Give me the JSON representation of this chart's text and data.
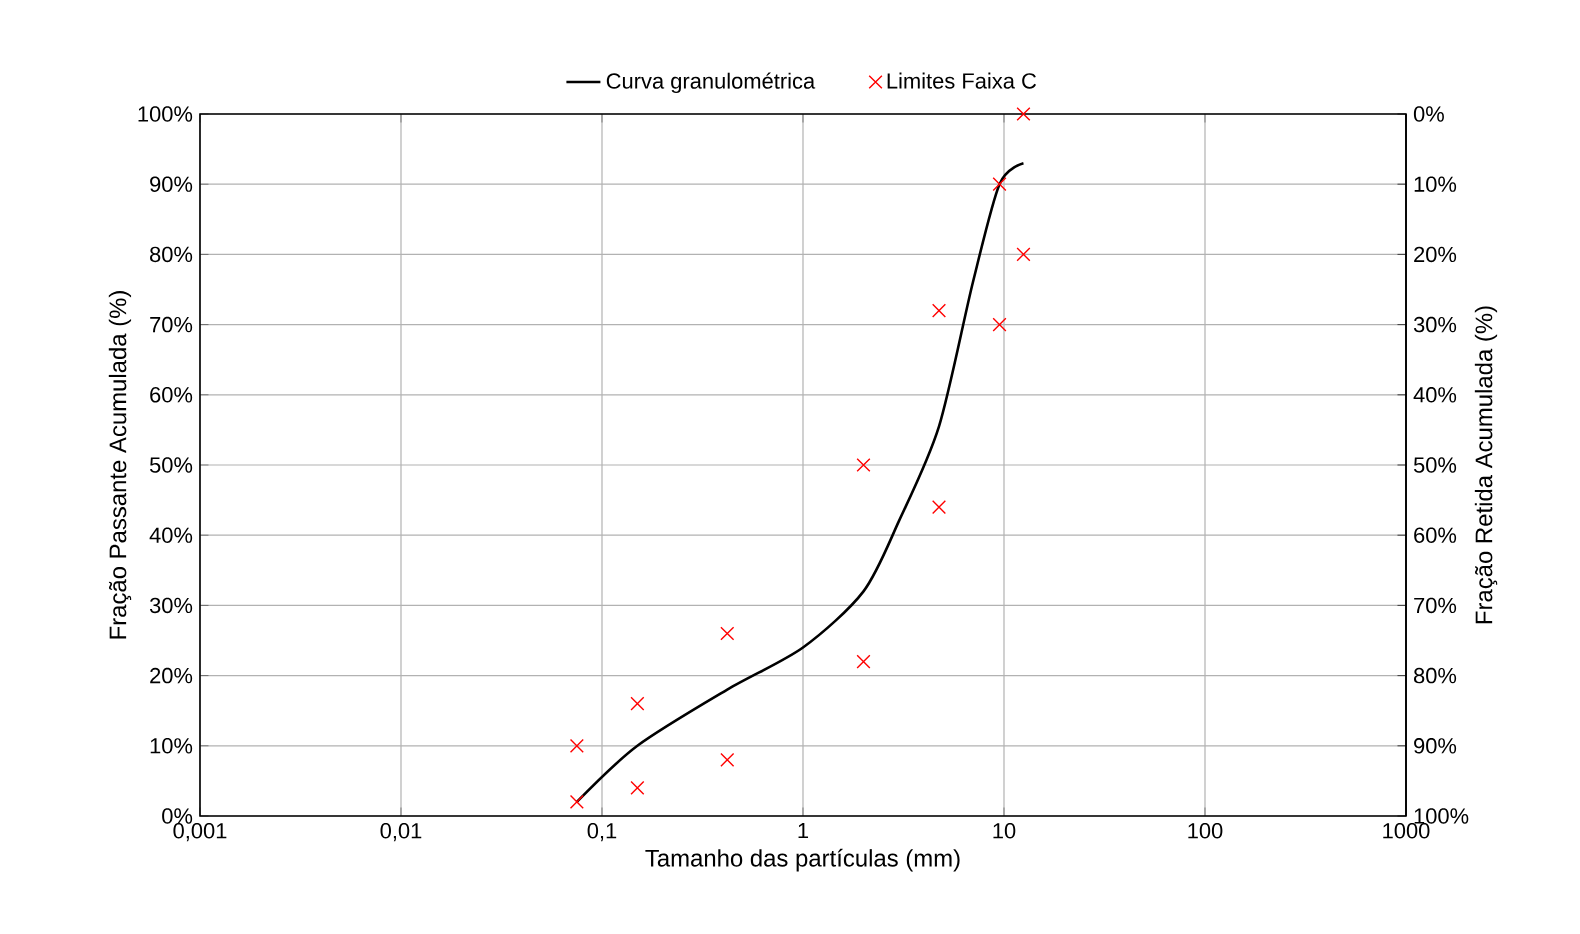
{
  "chart_data": {
    "type": "line",
    "xlabel": "Tamanho das partículas (mm)",
    "ylabel": "Fração Passante Acumulada (%)",
    "y2label": "Fração Retida Acumulada (%)",
    "log": "x",
    "grid": true,
    "legend": "top",
    "xlim": [
      0.001,
      1000
    ],
    "xticks": [
      {
        "value": 0.001,
        "label": "0,001"
      },
      {
        "value": 0.01,
        "label": "0,01"
      },
      {
        "value": 0.1,
        "label": "0,1"
      },
      1,
      10,
      100,
      1000
    ],
    "ylim": [
      0,
      100
    ],
    "yticks": [
      {
        "value": 0,
        "label": "0%"
      },
      {
        "value": 10,
        "label": "10%"
      },
      {
        "value": 20,
        "label": "20%"
      },
      {
        "value": 30,
        "label": "30%"
      },
      {
        "value": 40,
        "label": "40%"
      },
      {
        "value": 50,
        "label": "50%"
      },
      {
        "value": 60,
        "label": "60%"
      },
      {
        "value": 70,
        "label": "70%"
      },
      {
        "value": 80,
        "label": "80%"
      },
      {
        "value": 90,
        "label": "90%"
      },
      {
        "value": 100,
        "label": "100%"
      }
    ],
    "y2lim": [
      100,
      0
    ],
    "y2ticks": [
      {
        "value": 0,
        "label": "0%"
      },
      {
        "value": 10,
        "label": "10%"
      },
      {
        "value": 20,
        "label": "20%"
      },
      {
        "value": 30,
        "label": "30%"
      },
      {
        "value": 40,
        "label": "40%"
      },
      {
        "value": 50,
        "label": "50%"
      },
      {
        "value": 60,
        "label": "60%"
      },
      {
        "value": 70,
        "label": "70%"
      },
      {
        "value": 80,
        "label": "80%"
      },
      {
        "value": 90,
        "label": "90%"
      },
      {
        "value": 100,
        "label": "100%"
      }
    ],
    "series": [
      {
        "name": "Curva granulométrica",
        "color": "#000000",
        "marker": "none",
        "x": [
          0.075,
          0.15,
          0.42,
          1,
          2,
          3,
          4.75,
          7,
          9.5,
          12.5
        ],
        "values": [
          2,
          10,
          18,
          24,
          32,
          42,
          55.5,
          76,
          90,
          93
        ]
      },
      {
        "name": "Limites Faixa C",
        "type": "scatter",
        "color": "#ff0000",
        "marker": "cross",
        "x": [
          0.075,
          0.075,
          0.15,
          0.15,
          0.42,
          0.42,
          2,
          2,
          4.75,
          4.75,
          9.5,
          9.5,
          12.5,
          12.5
        ],
        "values": [
          10,
          2,
          16,
          4,
          26,
          8,
          50,
          22,
          72,
          44,
          90,
          70,
          100,
          80
        ]
      }
    ]
  }
}
